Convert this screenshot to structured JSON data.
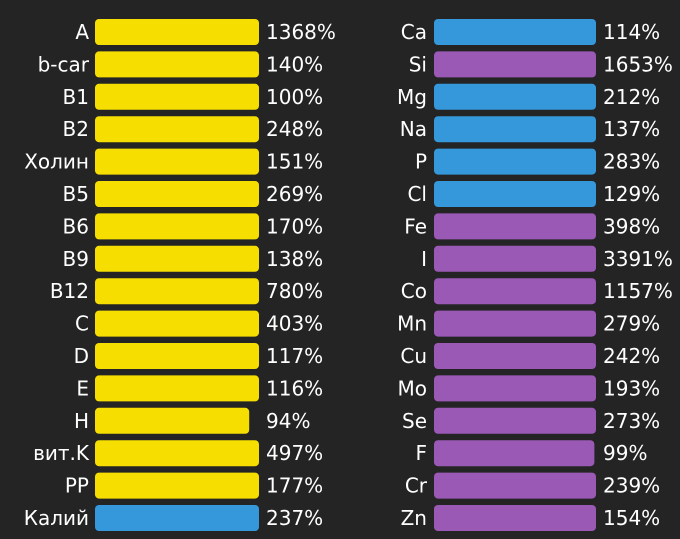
{
  "chart_data": [
    {
      "type": "bar",
      "orientation": "horizontal",
      "value_format": "percent",
      "value_cap": 100,
      "categories": [
        "A",
        "b-car",
        "B1",
        "B2",
        "Холин",
        "B5",
        "B6",
        "B9",
        "B12",
        "C",
        "D",
        "E",
        "H",
        "вит.K",
        "PP",
        "Калий"
      ],
      "values": [
        1368,
        140,
        100,
        248,
        151,
        269,
        170,
        138,
        780,
        403,
        117,
        116,
        94,
        497,
        177,
        237
      ],
      "bar_colors": [
        "#f5de00",
        "#f5de00",
        "#f5de00",
        "#f5de00",
        "#f5de00",
        "#f5de00",
        "#f5de00",
        "#f5de00",
        "#f5de00",
        "#f5de00",
        "#f5de00",
        "#f5de00",
        "#f5de00",
        "#f5de00",
        "#f5de00",
        "#3498db"
      ]
    },
    {
      "type": "bar",
      "orientation": "horizontal",
      "value_format": "percent",
      "value_cap": 100,
      "categories": [
        "Ca",
        "Si",
        "Mg",
        "Na",
        "P",
        "Cl",
        "Fe",
        "I",
        "Co",
        "Mn",
        "Cu",
        "Mo",
        "Se",
        "F",
        "Cr",
        "Zn"
      ],
      "values": [
        114,
        1653,
        212,
        137,
        283,
        129,
        398,
        3391,
        1157,
        279,
        242,
        193,
        273,
        99,
        239,
        154
      ],
      "bar_colors": [
        "#3498db",
        "#9b59b6",
        "#3498db",
        "#3498db",
        "#3498db",
        "#3498db",
        "#9b59b6",
        "#9b59b6",
        "#9b59b6",
        "#9b59b6",
        "#9b59b6",
        "#9b59b6",
        "#9b59b6",
        "#9b59b6",
        "#9b59b6",
        "#9b59b6"
      ]
    }
  ]
}
